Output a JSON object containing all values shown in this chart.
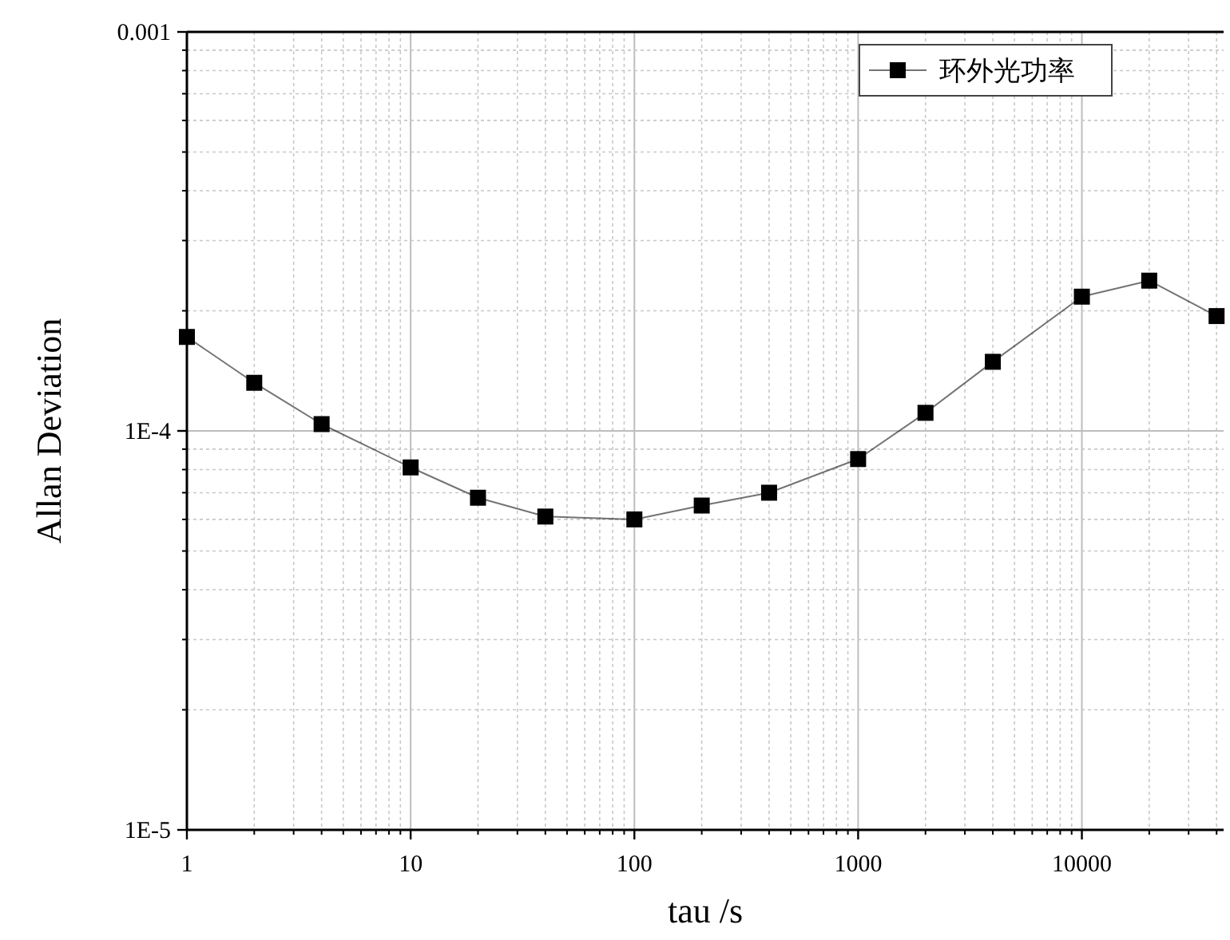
{
  "chart_data": {
    "type": "line",
    "xlabel": "tau /s",
    "ylabel": "Allan Deviation",
    "log": "xy",
    "grid": true,
    "legend": "top right",
    "marker": "square",
    "line_style": "solid",
    "xlim": [
      1,
      43000
    ],
    "xticks": [
      1,
      10,
      100,
      1000,
      10000
    ],
    "ylim": [
      1e-05,
      0.001
    ],
    "yticks": [
      {
        "value": 1e-05,
        "label": "1E-5"
      },
      {
        "value": 0.0001,
        "label": "1E-4"
      },
      {
        "value": 0.001,
        "label": "0.001"
      }
    ],
    "series": [
      {
        "name": "环外光功率",
        "color": "#000000",
        "x": [
          1,
          2,
          4,
          10,
          20,
          40,
          100,
          200,
          400,
          1000,
          2000,
          4000,
          10000,
          20000,
          40000
        ],
        "values": [
          0.000172,
          0.000132,
          0.000104,
          8.1e-05,
          6.8e-05,
          6.1e-05,
          6e-05,
          6.5e-05,
          7e-05,
          8.5e-05,
          0.000111,
          0.000149,
          0.000217,
          0.000238,
          0.000194
        ]
      }
    ]
  }
}
